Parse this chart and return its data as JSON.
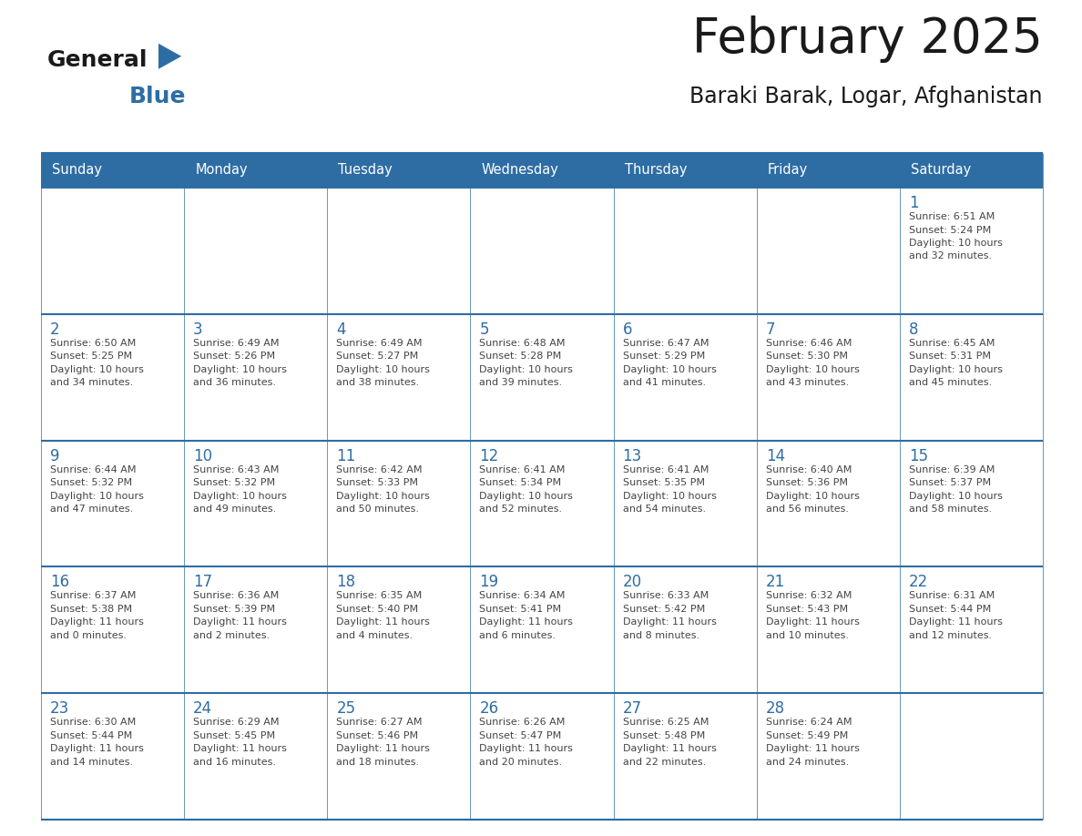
{
  "title": "February 2025",
  "subtitle": "Baraki Barak, Logar, Afghanistan",
  "header_bg": "#2E6DA4",
  "header_text_color": "#FFFFFF",
  "cell_bg": "#FFFFFF",
  "alt_cell_bg": "#F0F0F0",
  "day_number_color": "#2E6DA4",
  "info_text_color": "#444444",
  "border_color": "#2E6DA4",
  "separator_color": "#5B8DB8",
  "days_of_week": [
    "Sunday",
    "Monday",
    "Tuesday",
    "Wednesday",
    "Thursday",
    "Friday",
    "Saturday"
  ],
  "weeks": [
    [
      {
        "day": "",
        "info": ""
      },
      {
        "day": "",
        "info": ""
      },
      {
        "day": "",
        "info": ""
      },
      {
        "day": "",
        "info": ""
      },
      {
        "day": "",
        "info": ""
      },
      {
        "day": "",
        "info": ""
      },
      {
        "day": "1",
        "info": "Sunrise: 6:51 AM\nSunset: 5:24 PM\nDaylight: 10 hours\nand 32 minutes."
      }
    ],
    [
      {
        "day": "2",
        "info": "Sunrise: 6:50 AM\nSunset: 5:25 PM\nDaylight: 10 hours\nand 34 minutes."
      },
      {
        "day": "3",
        "info": "Sunrise: 6:49 AM\nSunset: 5:26 PM\nDaylight: 10 hours\nand 36 minutes."
      },
      {
        "day": "4",
        "info": "Sunrise: 6:49 AM\nSunset: 5:27 PM\nDaylight: 10 hours\nand 38 minutes."
      },
      {
        "day": "5",
        "info": "Sunrise: 6:48 AM\nSunset: 5:28 PM\nDaylight: 10 hours\nand 39 minutes."
      },
      {
        "day": "6",
        "info": "Sunrise: 6:47 AM\nSunset: 5:29 PM\nDaylight: 10 hours\nand 41 minutes."
      },
      {
        "day": "7",
        "info": "Sunrise: 6:46 AM\nSunset: 5:30 PM\nDaylight: 10 hours\nand 43 minutes."
      },
      {
        "day": "8",
        "info": "Sunrise: 6:45 AM\nSunset: 5:31 PM\nDaylight: 10 hours\nand 45 minutes."
      }
    ],
    [
      {
        "day": "9",
        "info": "Sunrise: 6:44 AM\nSunset: 5:32 PM\nDaylight: 10 hours\nand 47 minutes."
      },
      {
        "day": "10",
        "info": "Sunrise: 6:43 AM\nSunset: 5:32 PM\nDaylight: 10 hours\nand 49 minutes."
      },
      {
        "day": "11",
        "info": "Sunrise: 6:42 AM\nSunset: 5:33 PM\nDaylight: 10 hours\nand 50 minutes."
      },
      {
        "day": "12",
        "info": "Sunrise: 6:41 AM\nSunset: 5:34 PM\nDaylight: 10 hours\nand 52 minutes."
      },
      {
        "day": "13",
        "info": "Sunrise: 6:41 AM\nSunset: 5:35 PM\nDaylight: 10 hours\nand 54 minutes."
      },
      {
        "day": "14",
        "info": "Sunrise: 6:40 AM\nSunset: 5:36 PM\nDaylight: 10 hours\nand 56 minutes."
      },
      {
        "day": "15",
        "info": "Sunrise: 6:39 AM\nSunset: 5:37 PM\nDaylight: 10 hours\nand 58 minutes."
      }
    ],
    [
      {
        "day": "16",
        "info": "Sunrise: 6:37 AM\nSunset: 5:38 PM\nDaylight: 11 hours\nand 0 minutes."
      },
      {
        "day": "17",
        "info": "Sunrise: 6:36 AM\nSunset: 5:39 PM\nDaylight: 11 hours\nand 2 minutes."
      },
      {
        "day": "18",
        "info": "Sunrise: 6:35 AM\nSunset: 5:40 PM\nDaylight: 11 hours\nand 4 minutes."
      },
      {
        "day": "19",
        "info": "Sunrise: 6:34 AM\nSunset: 5:41 PM\nDaylight: 11 hours\nand 6 minutes."
      },
      {
        "day": "20",
        "info": "Sunrise: 6:33 AM\nSunset: 5:42 PM\nDaylight: 11 hours\nand 8 minutes."
      },
      {
        "day": "21",
        "info": "Sunrise: 6:32 AM\nSunset: 5:43 PM\nDaylight: 11 hours\nand 10 minutes."
      },
      {
        "day": "22",
        "info": "Sunrise: 6:31 AM\nSunset: 5:44 PM\nDaylight: 11 hours\nand 12 minutes."
      }
    ],
    [
      {
        "day": "23",
        "info": "Sunrise: 6:30 AM\nSunset: 5:44 PM\nDaylight: 11 hours\nand 14 minutes."
      },
      {
        "day": "24",
        "info": "Sunrise: 6:29 AM\nSunset: 5:45 PM\nDaylight: 11 hours\nand 16 minutes."
      },
      {
        "day": "25",
        "info": "Sunrise: 6:27 AM\nSunset: 5:46 PM\nDaylight: 11 hours\nand 18 minutes."
      },
      {
        "day": "26",
        "info": "Sunrise: 6:26 AM\nSunset: 5:47 PM\nDaylight: 11 hours\nand 20 minutes."
      },
      {
        "day": "27",
        "info": "Sunrise: 6:25 AM\nSunset: 5:48 PM\nDaylight: 11 hours\nand 22 minutes."
      },
      {
        "day": "28",
        "info": "Sunrise: 6:24 AM\nSunset: 5:49 PM\nDaylight: 11 hours\nand 24 minutes."
      },
      {
        "day": "",
        "info": ""
      }
    ]
  ],
  "logo_general_color": "#1a1a1a",
  "logo_blue_color": "#2E6DA4",
  "logo_triangle_color": "#2E6DA4"
}
